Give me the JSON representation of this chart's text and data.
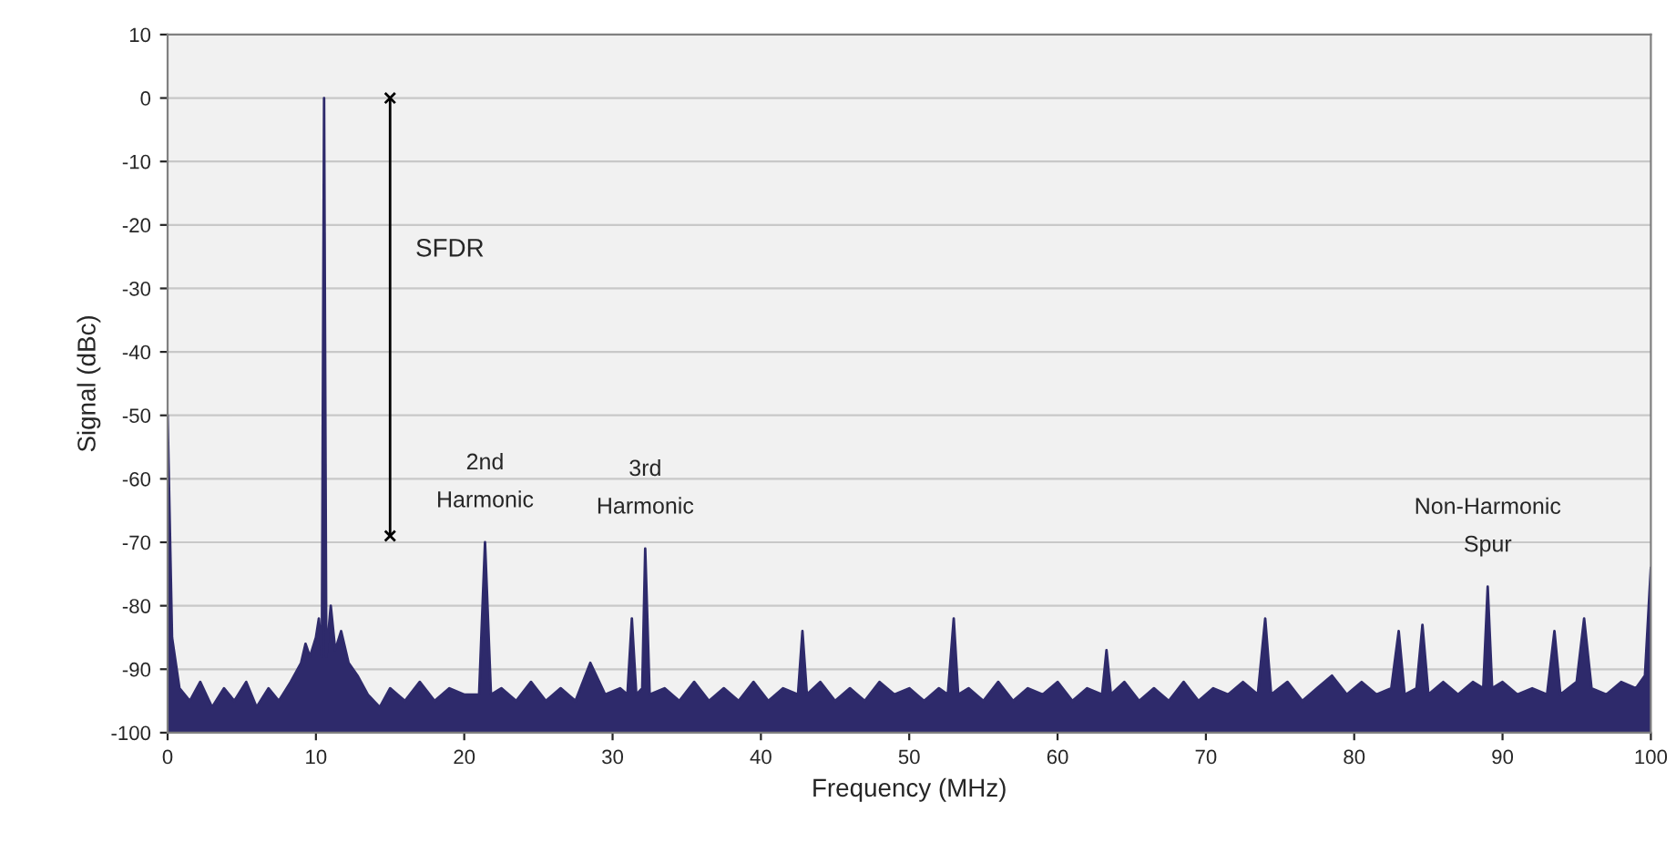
{
  "chart_data": {
    "type": "area",
    "xlabel": "Frequency (MHz)",
    "ylabel": "Signal (dBc)",
    "xlim": [
      0,
      100
    ],
    "xticks": [
      0,
      10,
      20,
      30,
      40,
      50,
      60,
      70,
      80,
      90,
      100
    ],
    "ylim": [
      -100,
      10
    ],
    "yticks": [
      -100,
      -90,
      -80,
      -70,
      -60,
      -50,
      -40,
      -30,
      -20,
      -10,
      0,
      10
    ],
    "grid": "y",
    "legend": false,
    "series": [
      {
        "color": "#2e2a6b",
        "x": [
          0,
          0.3,
          0.8,
          1.5,
          2.2,
          3,
          3.8,
          4.5,
          5.3,
          6,
          6.8,
          7.5,
          8.3,
          9,
          9.3,
          9.6,
          10,
          10.2,
          10.4,
          10.55,
          10.7,
          11,
          11.3,
          11.7,
          12.2,
          12.8,
          13.5,
          14.3,
          15,
          16,
          17,
          18,
          19,
          20,
          21,
          21.4,
          21.8,
          22.5,
          23.5,
          24.5,
          25.5,
          26.5,
          27.5,
          28.5,
          29.5,
          30.5,
          31,
          31.3,
          31.6,
          32,
          32.2,
          32.5,
          33.5,
          34.5,
          35.5,
          36.5,
          37.5,
          38.5,
          39.5,
          40.5,
          41.5,
          42.5,
          42.8,
          43.1,
          44,
          45,
          46,
          47,
          48,
          49,
          50,
          51,
          52,
          52.6,
          53,
          53.3,
          54,
          55,
          56,
          57,
          58,
          59,
          60,
          61,
          62,
          63,
          63.3,
          63.6,
          64.5,
          65.5,
          66.5,
          67.5,
          68.5,
          69.5,
          70.5,
          71.5,
          72.5,
          73.5,
          74,
          74.4,
          75.5,
          76.5,
          77.5,
          78.5,
          79.5,
          80.5,
          81.5,
          82.5,
          83,
          83.4,
          84.2,
          84.6,
          85,
          86,
          87,
          88,
          88.7,
          89,
          89.3,
          90,
          91,
          92,
          93,
          93.5,
          93.9,
          95,
          95.5,
          96,
          97,
          98,
          99,
          99.6,
          100
        ],
        "values": [
          -50,
          -85,
          -93,
          -95,
          -92,
          -96,
          -93,
          -95,
          -92,
          -96,
          -93,
          -95,
          -92,
          -89,
          -86,
          -88,
          -85,
          -82,
          -88,
          0,
          -88,
          -80,
          -87,
          -84,
          -89,
          -91,
          -94,
          -96,
          -93,
          -95,
          -92,
          -95,
          -93,
          -94,
          -94,
          -70,
          -94,
          -93,
          -95,
          -92,
          -95,
          -93,
          -95,
          -89,
          -94,
          -93,
          -94,
          -82,
          -94,
          -93,
          -71,
          -94,
          -93,
          -95,
          -92,
          -95,
          -93,
          -95,
          -92,
          -95,
          -93,
          -94,
          -84,
          -94,
          -92,
          -95,
          -93,
          -95,
          -92,
          -94,
          -93,
          -95,
          -93,
          -94,
          -82,
          -94,
          -93,
          -95,
          -92,
          -95,
          -93,
          -94,
          -92,
          -95,
          -93,
          -94,
          -87,
          -94,
          -92,
          -95,
          -93,
          -95,
          -92,
          -95,
          -93,
          -94,
          -92,
          -94,
          -82,
          -94,
          -92,
          -95,
          -93,
          -91,
          -94,
          -92,
          -94,
          -93,
          -84,
          -94,
          -93,
          -83,
          -94,
          -92,
          -94,
          -92,
          -93,
          -77,
          -93,
          -92,
          -94,
          -93,
          -94,
          -84,
          -94,
          -92,
          -82,
          -93,
          -94,
          -92,
          -93,
          -91,
          -74
        ]
      },
      {
        "type": "line",
        "color": "#000000",
        "marker": "cross",
        "x": [
          15,
          15
        ],
        "values": [
          0,
          -69
        ]
      }
    ],
    "annotations": [
      "SFDR",
      {
        "text": "2nd\nHarmonic",
        "x": 21.4,
        "y": -70
      },
      {
        "text": "3rd\nHarmonic",
        "x": 32.2,
        "y": -71
      },
      {
        "text": "Non-Harmonic\nSpur",
        "x": 89,
        "y": -77
      }
    ]
  }
}
